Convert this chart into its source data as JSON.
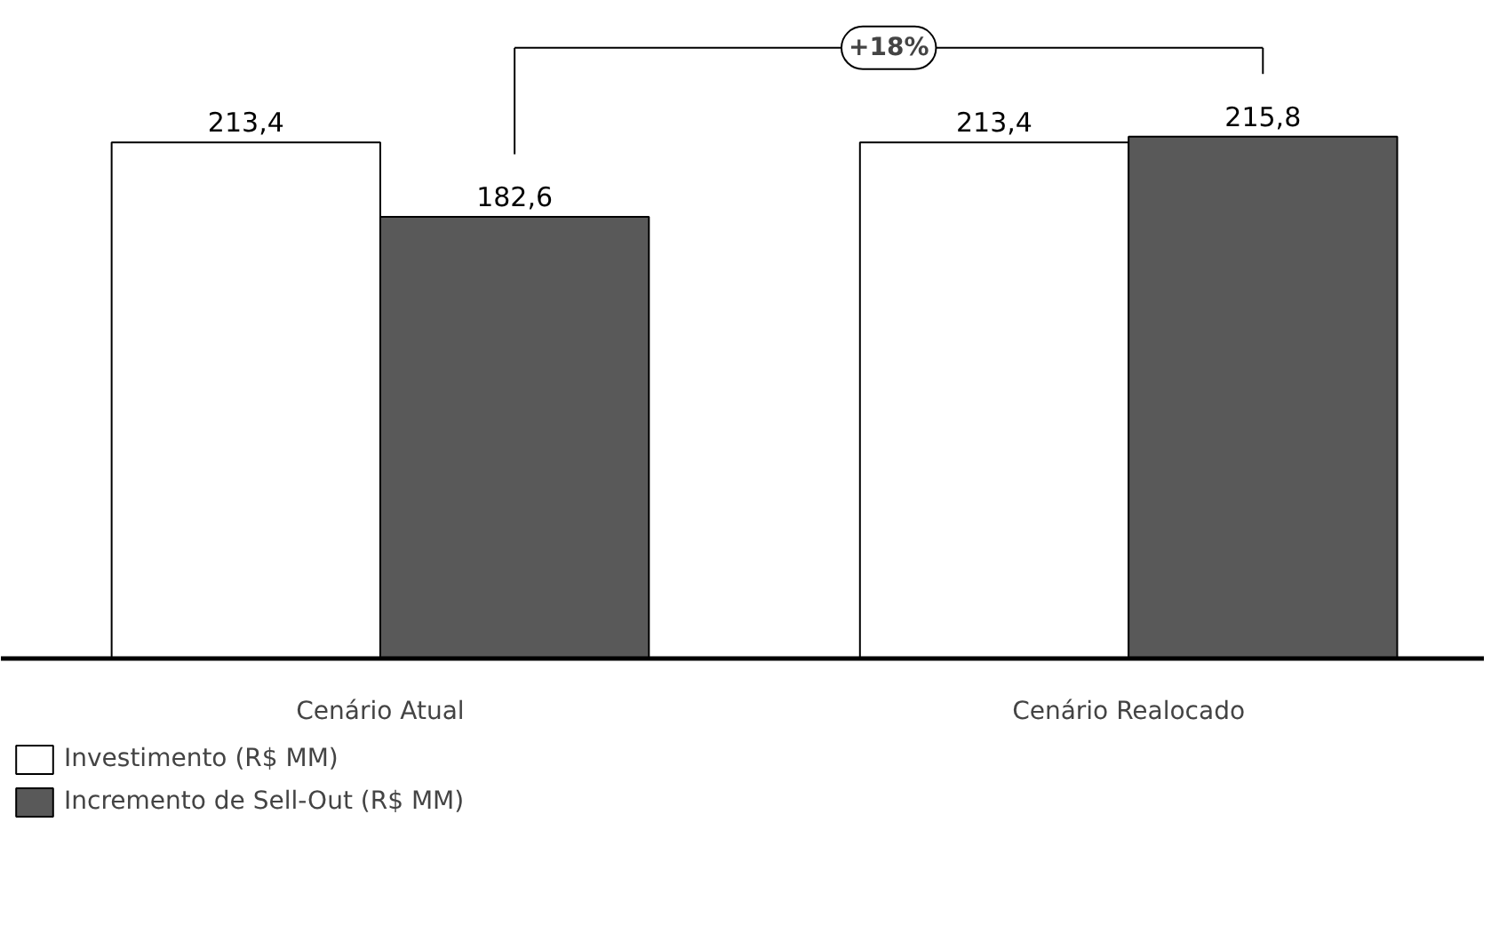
{
  "chart_data": {
    "type": "bar",
    "categories": [
      "Cenário Atual",
      "Cenário Realocado"
    ],
    "series": [
      {
        "name": "Investimento (R$ MM)",
        "color": "#ffffff",
        "values": [
          213.4,
          213.4
        ],
        "value_labels": [
          "213,4",
          "213,4"
        ]
      },
      {
        "name": "Incremento de Sell-Out (R$ MM)",
        "color": "#595959",
        "values": [
          182.6,
          215.8
        ],
        "value_labels": [
          "182,6",
          "215,8"
        ]
      }
    ],
    "annotations": [
      "+18%"
    ],
    "grid": false,
    "legend": "bottom left"
  }
}
